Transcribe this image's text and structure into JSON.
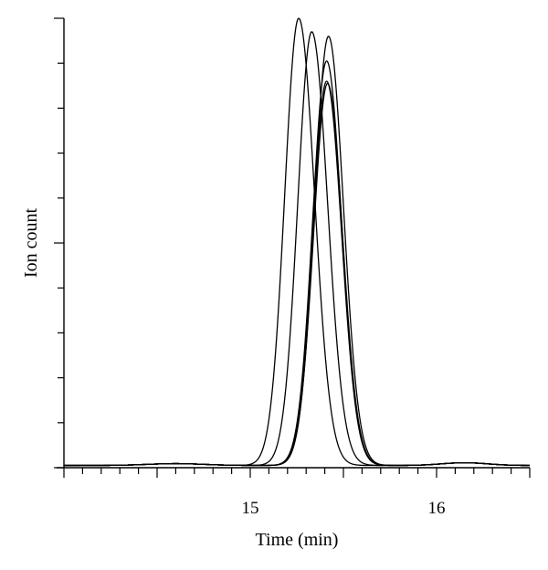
{
  "chart_data": {
    "type": "line",
    "xlabel": "Time (min)",
    "ylabel": "Ion count",
    "xlim": [
      14.0,
      16.5
    ],
    "ylim": [
      0,
      1.0
    ],
    "x_ticks": [
      14.0,
      14.1,
      14.2,
      14.3,
      14.4,
      14.5,
      14.6,
      14.7,
      14.8,
      14.9,
      15.0,
      15.1,
      15.2,
      15.3,
      15.4,
      15.5,
      15.6,
      15.7,
      15.8,
      15.9,
      16.0,
      16.1,
      16.2,
      16.3,
      16.4,
      16.5
    ],
    "x_tick_labels": [
      {
        "value": 15,
        "label": "15"
      },
      {
        "value": 16,
        "label": "16"
      }
    ],
    "y_ticks": [
      0,
      0.1,
      0.2,
      0.3,
      0.4,
      0.5,
      0.6,
      0.7,
      0.8,
      0.9,
      1.0
    ],
    "y_tick_labels": [],
    "grid": false,
    "legend": "none",
    "series": [
      {
        "peak_x": 15.26,
        "peak_y": 1.0,
        "sigma_left": 0.075,
        "sigma_right": 0.085,
        "baseline": 0.005
      },
      {
        "peak_x": 15.33,
        "peak_y": 0.97,
        "sigma_left": 0.075,
        "sigma_right": 0.085,
        "baseline": 0.005
      },
      {
        "peak_x": 15.42,
        "peak_y": 0.96,
        "sigma_left": 0.075,
        "sigma_right": 0.08,
        "baseline": 0.005
      },
      {
        "peak_x": 15.41,
        "peak_y": 0.905,
        "sigma_left": 0.075,
        "sigma_right": 0.08,
        "baseline": 0.005
      },
      {
        "peak_x": 15.41,
        "peak_y": 0.86,
        "sigma_left": 0.075,
        "sigma_right": 0.08,
        "baseline": 0.005
      },
      {
        "peak_x": 15.415,
        "peak_y": 0.855,
        "sigma_left": 0.075,
        "sigma_right": 0.08,
        "baseline": 0.005
      }
    ]
  }
}
